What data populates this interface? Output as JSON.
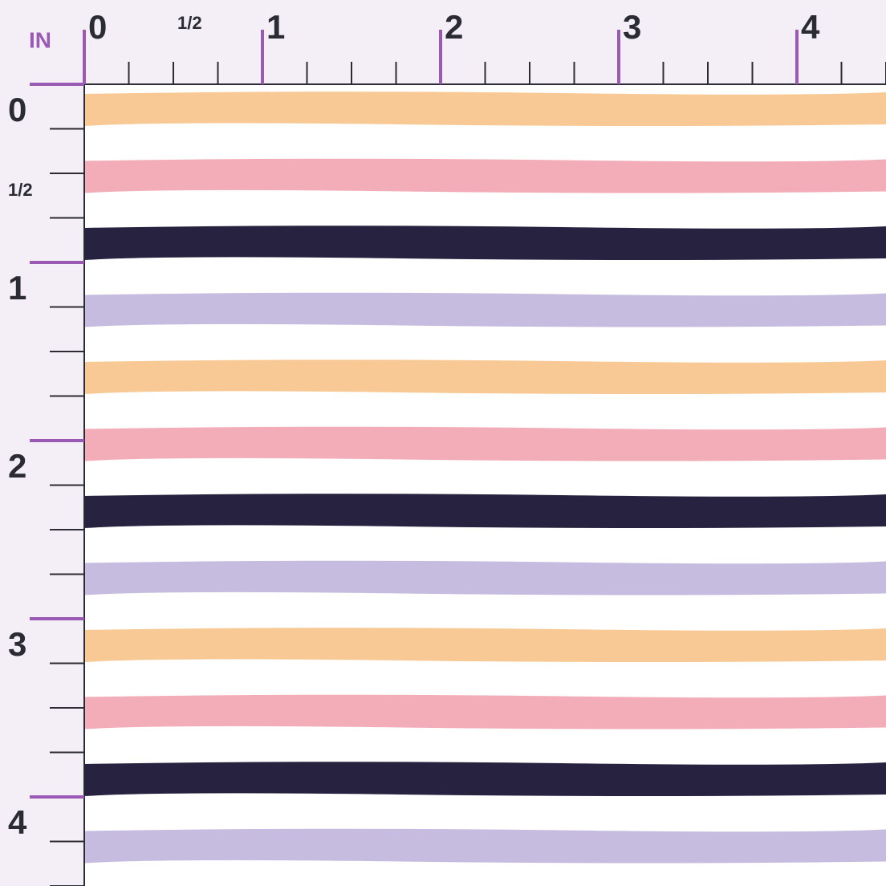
{
  "unit": "IN",
  "top_ruler": {
    "labels": [
      "0",
      "1/2",
      "1",
      "2",
      "3",
      "4"
    ]
  },
  "left_ruler": {
    "labels": [
      "0",
      "1/2",
      "1",
      "2",
      "3",
      "4"
    ]
  }
}
